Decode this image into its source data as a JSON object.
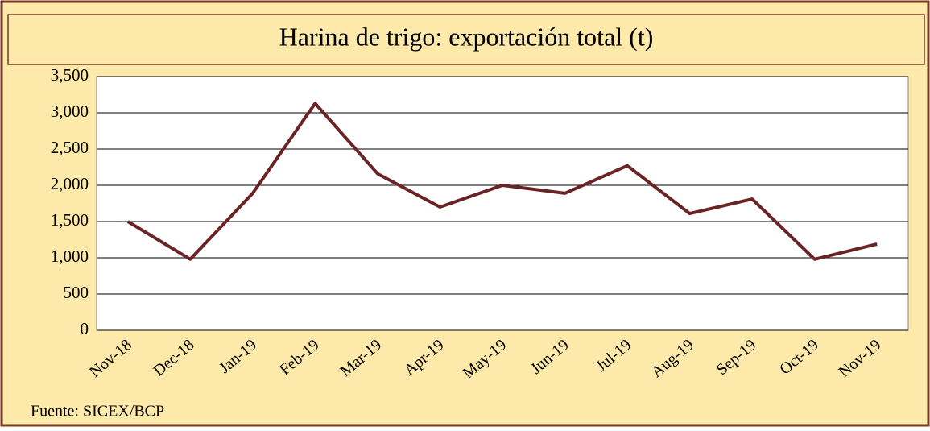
{
  "chart_data": {
    "type": "line",
    "title": "Harina de trigo: exportación total (t)",
    "source": "Fuente: SICEX/BCP",
    "categories": [
      "Nov-18",
      "Dec-18",
      "Jan-19",
      "Feb-19",
      "Mar-19",
      "Apr-19",
      "May-19",
      "Jun-19",
      "Jul-19",
      "Aug-19",
      "Sep-19",
      "Oct-19",
      "Nov-19"
    ],
    "series": [
      {
        "name": "Harina de trigo",
        "color": "#6b2426",
        "values": [
          1500,
          980,
          1890,
          3130,
          2160,
          1700,
          2000,
          1890,
          2270,
          1610,
          1810,
          980,
          1190
        ]
      }
    ],
    "ylim": [
      0,
      3500
    ],
    "yticks": [
      0,
      500,
      {
        "value": 1000,
        "label": "1,000"
      },
      {
        "value": 1500,
        "label": "1,500"
      },
      {
        "value": 2000,
        "label": "2,000"
      },
      {
        "value": 2500,
        "label": "2,500"
      },
      {
        "value": 3000,
        "label": "3,000"
      },
      {
        "value": 3500,
        "label": "3,500"
      }
    ],
    "grid": true
  }
}
